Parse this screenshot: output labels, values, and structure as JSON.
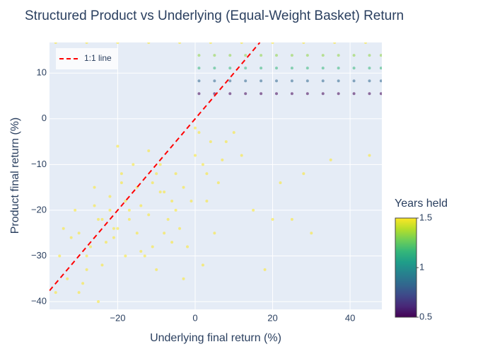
{
  "chart_data": {
    "type": "scatter",
    "title": "Structured Product vs Underlying (Equal-Weight Basket) Return",
    "x_label": "Underlying final return (%)",
    "y_label": "Product final return (%)",
    "xlim": [
      -37.6,
      48.2
    ],
    "xticks": [
      {
        "value": -20,
        "label": "−20"
      },
      0,
      20,
      40
    ],
    "ylim": [
      -41.7,
      16.7
    ],
    "yticks": [
      {
        "value": -40,
        "label": "−40"
      },
      {
        "value": -30,
        "label": "−30"
      },
      {
        "value": -20,
        "label": "−20"
      },
      {
        "value": -10,
        "label": "−10"
      },
      0,
      10
    ],
    "grid": true,
    "colorbar": {
      "title": "Years held",
      "lim": [
        0.5,
        1.5
      ],
      "ticks": [
        0.5,
        1,
        1.5
      ],
      "colorscale": [
        "#440154",
        "#482878",
        "#3e4989",
        "#31688e",
        "#26828e",
        "#1f9e89",
        "#35b779",
        "#6ece58",
        "#b5de2b",
        "#fde725"
      ]
    },
    "legend": "top-left",
    "line": {
      "name": "1:1 line",
      "color": "#ff0000",
      "x": [
        -37.6,
        16.7
      ],
      "values": [
        -37.6,
        16.7
      ]
    },
    "series": [
      {
        "years": 1.5,
        "x": [
          -30,
          -28,
          -25,
          -22,
          -20,
          -18,
          -15,
          -12,
          -10,
          -8,
          -5,
          -3,
          0,
          2,
          5,
          8,
          10,
          -33,
          -35,
          -27,
          -24,
          -21,
          -19,
          -17,
          -14,
          -11,
          -9,
          -6,
          -4,
          -2,
          1,
          3,
          -31,
          -29,
          -26,
          -23,
          -16,
          -13,
          -7,
          -1,
          4,
          6,
          12,
          15,
          18,
          22,
          25,
          30,
          35,
          45,
          -36,
          -32,
          -20,
          -18,
          -22,
          -25,
          -15,
          -10,
          -5,
          0,
          3,
          -28,
          -12,
          -8,
          20,
          28,
          -34,
          -30,
          -24,
          -19,
          -14,
          -9,
          -3,
          2,
          7,
          -26,
          -21,
          -17,
          -11,
          -6
        ],
        "values": [
          -25,
          -30,
          -22,
          -20,
          -24,
          -18,
          -15,
          -21,
          -12,
          -25,
          -20,
          -15,
          -8,
          -10,
          -25,
          -5,
          -3,
          -35,
          -30,
          -28,
          -32,
          -26,
          -14,
          -22,
          -19,
          -28,
          -10,
          -18,
          -24,
          -28,
          -3,
          -12,
          -20,
          -36,
          -15,
          -27,
          -10,
          -30,
          -22,
          -18,
          -5,
          -14,
          -8,
          -20,
          -33,
          -14,
          -22,
          -25,
          -9,
          -8,
          -38,
          -26,
          -6,
          -30,
          -17,
          -40,
          -25,
          -33,
          -12,
          -2,
          -18,
          -33,
          -7,
          -16,
          -22,
          -12,
          -24,
          -38,
          -22,
          -12,
          -29,
          -16,
          -35,
          -32,
          -9,
          -19,
          -24,
          -20,
          -14,
          -27
        ]
      },
      {
        "years": 1.5,
        "x": [
          -36,
          -28,
          -20,
          -12,
          -4,
          4,
          12,
          20,
          28,
          36,
          44
        ],
        "values": [
          16.7,
          16.7,
          16.7,
          16.7,
          16.7,
          16.7,
          16.7,
          16.7,
          16.7,
          16.7,
          16.7
        ]
      },
      {
        "years": 1.33,
        "x": [
          1,
          5,
          9,
          13,
          17,
          21,
          25,
          29,
          33,
          37,
          41,
          45,
          48
        ],
        "values": [
          13.9,
          13.9,
          13.9,
          13.9,
          13.9,
          13.9,
          13.9,
          13.9,
          13.9,
          13.9,
          13.9,
          13.9,
          13.9
        ]
      },
      {
        "years": 1.17,
        "x": [
          1,
          5,
          9,
          13,
          17,
          21,
          25,
          29,
          33,
          37,
          41,
          45,
          48
        ],
        "values": [
          11.1,
          11.1,
          11.1,
          11.1,
          11.1,
          11.1,
          11.1,
          11.1,
          11.1,
          11.1,
          11.1,
          11.1,
          11.1
        ]
      },
      {
        "years": 0.83,
        "x": [
          1,
          5,
          9,
          13,
          17,
          21,
          25,
          29,
          33,
          37,
          41,
          45,
          48
        ],
        "values": [
          8.3,
          8.3,
          8.3,
          8.3,
          8.3,
          8.3,
          8.3,
          8.3,
          8.3,
          8.3,
          8.3,
          8.3,
          8.3
        ]
      },
      {
        "years": 0.5,
        "x": [
          1,
          5,
          9,
          13,
          17,
          21,
          25,
          29,
          33,
          37,
          41,
          45,
          48
        ],
        "values": [
          5.5,
          5.5,
          5.5,
          5.5,
          5.5,
          5.5,
          5.5,
          5.5,
          5.5,
          5.5,
          5.5,
          5.5,
          5.5
        ]
      }
    ]
  }
}
